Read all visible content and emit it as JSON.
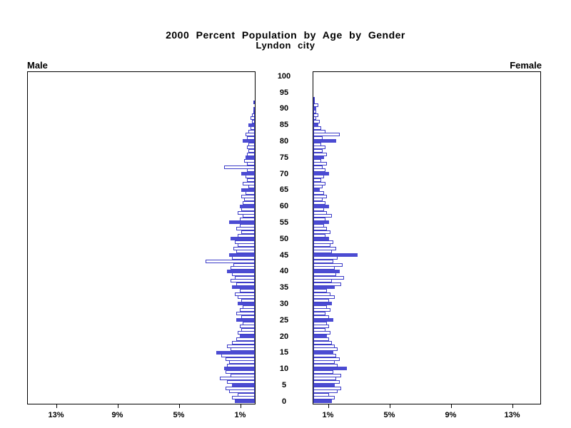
{
  "title": {
    "line1": "2000 Percent Population by Age by Gender",
    "line2": "Lyndon city"
  },
  "labels": {
    "male": "Male",
    "female": "Female"
  },
  "chart_data": {
    "type": "bar",
    "subtype": "population_pyramid",
    "title": "2000 Percent Population by Age by Gender",
    "subtitle": "Lyndon city",
    "orientation": "horizontal",
    "age_min": 0,
    "age_max": 100,
    "age_ticks": [
      0,
      5,
      10,
      15,
      20,
      25,
      30,
      35,
      40,
      45,
      50,
      55,
      60,
      65,
      70,
      75,
      80,
      85,
      90,
      95,
      100
    ],
    "age_tick_labels": [
      "0",
      "5",
      "10",
      "15",
      "20",
      "25",
      "30",
      "35",
      "40",
      "45",
      "50",
      "55",
      "60",
      "65",
      "70",
      "75",
      "80",
      "85",
      "90",
      "95",
      "100"
    ],
    "x_ticks": [
      1,
      5,
      9,
      13
    ],
    "x_tick_labels_left": [
      "13%",
      "9%",
      "5%",
      "1%"
    ],
    "x_tick_labels_right": [
      "1%",
      "5%",
      "9%",
      "13%"
    ],
    "x_unit": "percent",
    "x_max": 14.8,
    "highlight_every": 5,
    "grid": false,
    "legend": "none",
    "colors": {
      "filled_bar": "#4b4bd2",
      "bar_outline": "#3c3cc8",
      "empty_bar": "#ffffff",
      "axis": "#000000"
    },
    "series": [
      {
        "name": "Male",
        "side": "left",
        "ages_start": 0,
        "values": [
          1.3,
          1.5,
          1.1,
          1.7,
          1.9,
          1.5,
          1.8,
          2.3,
          1.6,
          1.9,
          2.0,
          1.8,
          1.7,
          1.9,
          2.2,
          2.5,
          1.6,
          1.8,
          1.5,
          1.2,
          1.0,
          1.1,
          0.9,
          1.0,
          0.8,
          1.2,
          0.9,
          1.2,
          1.0,
          0.8,
          1.1,
          0.9,
          1.1,
          1.3,
          1.0,
          1.5,
          1.2,
          1.6,
          1.3,
          1.5,
          1.8,
          1.6,
          1.4,
          3.2,
          1.5,
          1.7,
          1.2,
          1.4,
          1.1,
          1.3,
          1.6,
          1.1,
          0.9,
          1.2,
          1.0,
          1.7,
          1.0,
          0.8,
          1.1,
          0.9,
          1.0,
          0.8,
          0.7,
          0.9,
          0.6,
          0.9,
          0.4,
          0.8,
          0.5,
          0.6,
          0.9,
          0.5,
          2.0,
          0.5,
          0.7,
          0.6,
          0.5,
          0.4,
          0.5,
          0.4,
          0.8,
          0.5,
          0.6,
          0.4,
          0.3,
          0.4,
          0.2,
          0.3,
          0.2,
          0.1,
          0.1,
          0,
          0.1,
          0,
          0,
          0,
          0,
          0,
          0,
          0,
          0
        ]
      },
      {
        "name": "Female",
        "side": "right",
        "ages_start": 0,
        "values": [
          1.2,
          1.4,
          1.0,
          1.6,
          1.8,
          1.4,
          1.7,
          1.5,
          1.8,
          1.3,
          2.2,
          1.6,
          1.4,
          1.7,
          1.5,
          1.3,
          1.6,
          1.4,
          1.2,
          1.0,
          0.9,
          1.1,
          0.8,
          1.0,
          0.9,
          1.3,
          1.0,
          0.8,
          1.1,
          0.9,
          1.2,
          1.0,
          1.4,
          1.1,
          0.9,
          1.4,
          1.8,
          1.2,
          2.0,
          1.5,
          1.7,
          1.4,
          1.9,
          1.3,
          1.6,
          2.9,
          1.2,
          1.5,
          1.1,
          1.3,
          1.0,
          0.8,
          1.1,
          0.9,
          0.7,
          1.0,
          0.8,
          1.2,
          0.9,
          0.7,
          1.0,
          0.8,
          0.6,
          0.9,
          0.7,
          0.4,
          0.6,
          0.8,
          0.5,
          0.7,
          1.0,
          0.8,
          0.6,
          0.9,
          0.5,
          0.7,
          0.9,
          0.6,
          0.8,
          0.5,
          1.5,
          0.6,
          1.7,
          0.8,
          0.5,
          0.3,
          0.4,
          0.2,
          0.3,
          0.2,
          0.2,
          0.3,
          0.1,
          0.1,
          0,
          0,
          0,
          0,
          0,
          0,
          0
        ]
      }
    ]
  }
}
